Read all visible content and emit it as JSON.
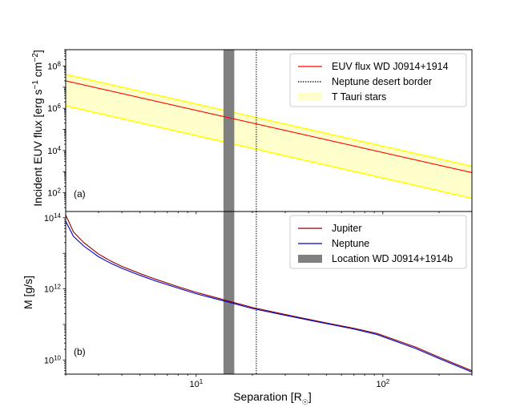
{
  "chart_data": [
    {
      "type": "line",
      "panel_label": "(a)",
      "xscale": "log",
      "yscale": "log",
      "xlim": [
        2,
        300
      ],
      "ylim": [
        13,
        600000000
      ],
      "yticks": [
        {
          "value": 100,
          "mant": "10",
          "exp": "2"
        },
        {
          "value": 10000,
          "mant": "10",
          "exp": "4"
        },
        {
          "value": 1000000,
          "mant": "10",
          "exp": "6"
        },
        {
          "value": 100000000,
          "mant": "10",
          "exp": "8"
        }
      ],
      "ylabel": {
        "pre": "Incident EUV flux [erg s",
        "e1": "−1",
        "mid": " cm",
        "e2": "−2",
        "post": "]"
      },
      "series": [
        {
          "name": "EUV flux WD J0914+1914",
          "color": "#ff0000",
          "x": [
            2,
            300
          ],
          "y": [
            20000000,
            900
          ]
        }
      ],
      "band": {
        "name": "T Tauri stars",
        "fill": "#ffffcc",
        "edge_color": "#ffff00",
        "upper": {
          "x": [
            2,
            300
          ],
          "y": [
            40000000,
            1800
          ]
        },
        "lower": {
          "x": [
            2,
            300
          ],
          "y": [
            1300000,
            55
          ]
        }
      },
      "vline": {
        "name": "Neptune desert border",
        "x": 21,
        "color": "#000000"
      },
      "vspan": {
        "x0": 14,
        "x1": 16,
        "color": "#808080"
      },
      "legend": [
        "EUV flux WD J0914+1914",
        "Neptune desert border",
        "T Tauri stars"
      ],
      "legend_position": "top-right"
    },
    {
      "type": "line",
      "panel_label": "(b)",
      "xscale": "log",
      "yscale": "log",
      "xlim": [
        2,
        300
      ],
      "ylim": [
        4000000000,
        150000000000000
      ],
      "yticks": [
        {
          "value": 10000000000,
          "mant": "10",
          "exp": "10"
        },
        {
          "value": 1000000000000,
          "mant": "10",
          "exp": "12"
        },
        {
          "value": 100000000000000,
          "mant": "10",
          "exp": "14"
        }
      ],
      "ylabel": {
        "text": "M [g/s]"
      },
      "xlabel": "Separation [R",
      "xlabel_sub": "☉",
      "xlabel_end": "]",
      "xticks": [
        {
          "value": 10,
          "mant": "10",
          "exp": "1"
        },
        {
          "value": 100,
          "mant": "10",
          "exp": "2"
        }
      ],
      "series": [
        {
          "name": "Jupiter",
          "color": "#8b0000",
          "x": [
            2,
            2.2,
            2.5,
            3,
            3.5,
            4,
            5,
            6,
            8,
            10,
            12,
            15,
            20,
            30,
            50,
            70,
            93,
            150,
            200,
            300
          ],
          "y": [
            120000000000000,
            40000000000000,
            20000000000000,
            9500000000000,
            6000000000000,
            4300000000000,
            2700000000000,
            1900000000000,
            1150000000000,
            800000000000,
            620000000000,
            450000000000,
            300000000000,
            190000000000,
            110000000000,
            78000000000,
            56000000000,
            23000000000,
            12000000000,
            5000000000
          ]
        },
        {
          "name": "Neptune",
          "color": "#0000cd",
          "x": [
            2,
            2.2,
            2.5,
            3,
            3.5,
            4,
            5,
            6,
            8,
            10,
            12,
            15,
            20,
            30,
            50,
            70,
            93,
            150,
            200,
            300
          ],
          "y": [
            80000000000000,
            30000000000000,
            16000000000000,
            8000000000000,
            5200000000000,
            3800000000000,
            2400000000000,
            1700000000000,
            1050000000000,
            730000000000,
            570000000000,
            420000000000,
            280000000000,
            180000000000,
            105000000000,
            74000000000,
            52000000000,
            21000000000,
            11000000000,
            4600000000
          ]
        }
      ],
      "vline": {
        "x": 21,
        "color": "#000000"
      },
      "vspan": {
        "name": "Location WD J0914+1914b",
        "x0": 14,
        "x1": 16,
        "color": "#808080"
      },
      "legend": [
        "Jupiter",
        "Neptune",
        "Location WD J0914+1914b"
      ],
      "legend_position": "top-right"
    }
  ]
}
